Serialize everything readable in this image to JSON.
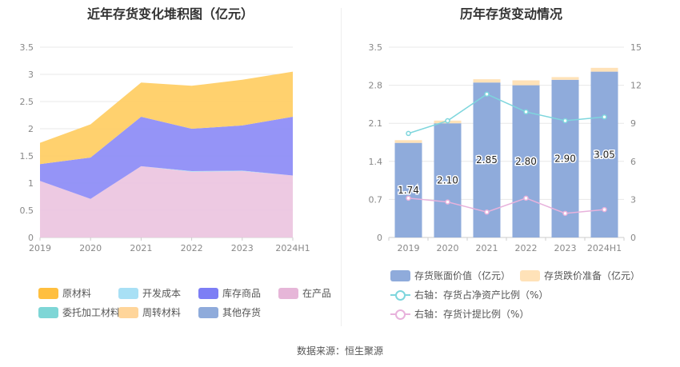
{
  "source": "数据来源：恒生聚源",
  "chart_data": [
    {
      "type": "area",
      "title": "近年存货变化堆积图（亿元）",
      "categories": [
        "2019",
        "2020",
        "2021",
        "2022",
        "2023",
        "2024H1"
      ],
      "ylim": [
        0,
        3.5
      ],
      "yticks": [
        "0",
        "0.5",
        "1",
        "1.5",
        "2",
        "2.5",
        "3",
        "3.5"
      ],
      "stacked": true,
      "series": [
        {
          "name": "在产品",
          "color": "#ecc6e0",
          "values": [
            1.04,
            0.71,
            1.31,
            1.21,
            1.22,
            1.14
          ]
        },
        {
          "name": "开发成本",
          "color": "#a8e0f5",
          "values": [
            0,
            0,
            0,
            0.01,
            0.01,
            0
          ]
        },
        {
          "name": "库存商品",
          "color": "#8f8ef7",
          "values": [
            0.31,
            0.76,
            0.91,
            0.78,
            0.83,
            1.08
          ]
        },
        {
          "name": "原材料",
          "color": "#ffcf66",
          "values": [
            0.39,
            0.61,
            0.63,
            0.79,
            0.84,
            0.83
          ]
        },
        {
          "name": "委托加工材料",
          "color": "#7ed6d6",
          "values": [
            0,
            0,
            0,
            0,
            0,
            0
          ]
        },
        {
          "name": "周转材料",
          "color": "#ffd59a",
          "values": [
            0,
            0,
            0,
            0,
            0,
            0
          ]
        },
        {
          "name": "其他存货",
          "color": "#8fabdb",
          "values": [
            0,
            0,
            0,
            0,
            0,
            0
          ]
        }
      ],
      "legend": [
        {
          "name": "原材料",
          "color": "#ffbf3f"
        },
        {
          "name": "开发成本",
          "color": "#a8e0f5"
        },
        {
          "name": "库存商品",
          "color": "#7d7ef5"
        },
        {
          "name": "在产品",
          "color": "#e6b6d8"
        },
        {
          "name": "委托加工材料",
          "color": "#7ed6d6"
        },
        {
          "name": "周转材料",
          "color": "#ffd59a"
        },
        {
          "name": "其他存货",
          "color": "#8fabdb"
        }
      ],
      "grid": true
    },
    {
      "type": "bar",
      "title": "历年存货变动情况",
      "categories": [
        "2019",
        "2020",
        "2021",
        "2022",
        "2023",
        "2024H1"
      ],
      "ylim": [
        0,
        3.5
      ],
      "yticks": [
        "0",
        "0.7",
        "1.4",
        "2.1",
        "2.8",
        "3.5"
      ],
      "y2lim": [
        0,
        15
      ],
      "y2ticks": [
        "0",
        "3",
        "6",
        "9",
        "12",
        "15"
      ],
      "series": [
        {
          "name": "存货账面价值（亿元）",
          "kind": "bar",
          "color": "#8fabdb",
          "values": [
            1.74,
            2.1,
            2.85,
            2.8,
            2.9,
            3.05
          ],
          "labels": [
            "1.74",
            "2.10",
            "2.85",
            "2.80",
            "2.90",
            "3.05"
          ]
        },
        {
          "name": "存货跌价准备（亿元）",
          "kind": "bar-stack",
          "color": "#ffe2b8",
          "values": [
            0.05,
            0.05,
            0.06,
            0.09,
            0.05,
            0.07
          ]
        },
        {
          "name": "右轴：存货占净资产比例（%）",
          "kind": "line",
          "axis": "right",
          "color": "#7ed6dd",
          "values": [
            8.2,
            9.2,
            11.3,
            9.9,
            9.2,
            9.5
          ]
        },
        {
          "name": "右轴：存货计提比例（%）",
          "kind": "line",
          "axis": "right",
          "color": "#e8b2dc",
          "values": [
            3.1,
            2.8,
            2.0,
            3.1,
            1.9,
            2.2
          ]
        }
      ],
      "grid": true
    }
  ]
}
